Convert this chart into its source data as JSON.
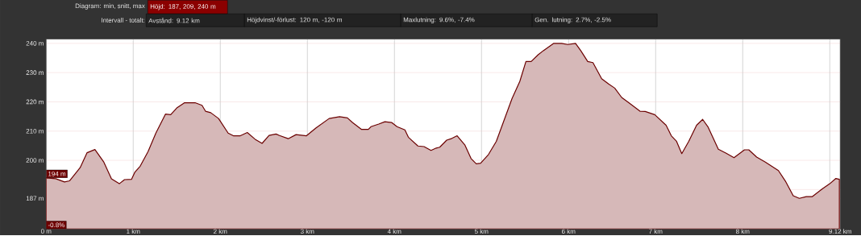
{
  "chart_data": {
    "type": "area",
    "title": "Diagram: min, snitt, max",
    "subtitle": "Intervall - totalt:",
    "annotations": [
      "Höjd: 187, 209, 240 m",
      "Avstånd: 9.12 km",
      "Höjdvinst/-förlust: 120 m, -120 m",
      "Maxlutning: 9.6%, -7.4%",
      "Gen. lutning: 2.7%, -2.5%",
      {
        "text": "194 m",
        "x": 0,
        "y": 194
      },
      "-0.8%"
    ],
    "x": [
      0,
      0.11,
      0.21,
      0.27,
      0.39,
      0.47,
      0.56,
      0.66,
      0.75,
      0.84,
      0.9,
      0.98,
      1.02,
      1.08,
      1.17,
      1.26,
      1.37,
      1.43,
      1.5,
      1.59,
      1.71,
      1.79,
      1.83,
      1.89,
      1.98,
      2.09,
      2.15,
      2.23,
      2.31,
      2.4,
      2.48,
      2.56,
      2.64,
      2.68,
      2.78,
      2.87,
      2.99,
      3.1,
      3.25,
      3.37,
      3.46,
      3.52,
      3.62,
      3.7,
      3.73,
      3.82,
      3.89,
      3.97,
      4.03,
      4.12,
      4.16,
      4.27,
      4.34,
      4.42,
      4.48,
      4.52,
      4.6,
      4.66,
      4.72,
      4.81,
      4.88,
      4.94,
      4.99,
      5.08,
      5.17,
      5.26,
      5.35,
      5.44,
      5.51,
      5.57,
      5.65,
      5.71,
      5.83,
      5.92,
      5.99,
      6.08,
      6.14,
      6.22,
      6.28,
      6.38,
      6.46,
      6.53,
      6.61,
      6.71,
      6.82,
      6.88,
      6.99,
      7.12,
      7.18,
      7.24,
      7.3,
      7.38,
      7.47,
      7.54,
      7.6,
      7.72,
      7.81,
      7.9,
      8.02,
      8.07,
      8.16,
      8.26,
      8.41,
      8.49,
      8.58,
      8.65,
      8.73,
      8.8,
      8.92,
      9.0,
      9.07,
      9.11
    ],
    "series": [
      {
        "color": "#6b0000",
        "values": [
          194,
          193.7,
          192.6,
          193,
          197.5,
          202.6,
          203.7,
          199.5,
          193.7,
          192,
          193.4,
          193.5,
          196,
          198,
          203,
          209.3,
          215.8,
          215.6,
          217.9,
          219.7,
          219.7,
          218.8,
          216.8,
          216.3,
          214.3,
          209.3,
          208.4,
          208.4,
          209.5,
          207.2,
          205.8,
          208.5,
          209,
          208.5,
          207.4,
          208.8,
          208.4,
          211.1,
          214.3,
          214.9,
          214.5,
          212.9,
          210.6,
          210.6,
          211.5,
          212.4,
          213.2,
          212.9,
          211.5,
          210.4,
          207.9,
          204.9,
          204.7,
          203.4,
          204.2,
          204.5,
          206.9,
          207.5,
          208.4,
          205.2,
          200.6,
          198.8,
          199,
          202,
          206.5,
          213.8,
          221.1,
          227,
          233.8,
          233.8,
          236.1,
          237.5,
          240,
          240,
          239.6,
          240,
          237.5,
          233.8,
          233.4,
          227.9,
          226.1,
          224.7,
          221.5,
          219.3,
          216.8,
          216.7,
          215.6,
          212,
          208.4,
          206.5,
          202.3,
          206.5,
          212,
          214,
          211.5,
          203.8,
          202.4,
          200.9,
          203.6,
          203.6,
          201.1,
          199.4,
          196.5,
          192.9,
          187.9,
          187,
          187.6,
          187.6,
          190.4,
          192,
          193.8,
          193.5
        ]
      }
    ],
    "xlim": [
      0,
      9.12
    ],
    "xticks": [
      {
        "value": 0,
        "label": "0 m"
      },
      {
        "value": 1,
        "label": "1 km"
      },
      {
        "value": 2,
        "label": "2 km"
      },
      {
        "value": 3,
        "label": "3 km"
      },
      {
        "value": 4,
        "label": "4 km"
      },
      {
        "value": 5,
        "label": "5 km"
      },
      {
        "value": 6,
        "label": "6 km"
      },
      {
        "value": 7,
        "label": "7 km"
      },
      {
        "value": 8,
        "label": "8 km"
      },
      {
        "value": 9,
        "label": null
      },
      {
        "value": 9.12,
        "label": "9.12 km"
      }
    ],
    "ylim": [
      176.5,
      241.5
    ],
    "yticks": [
      {
        "value": 187,
        "label": "187 m"
      },
      {
        "value": 190,
        "label": null
      },
      {
        "value": 200,
        "label": "200 m"
      },
      {
        "value": 210,
        "label": "210 m"
      },
      {
        "value": 220,
        "label": "220 m"
      },
      {
        "value": 230,
        "label": "230 m"
      },
      {
        "value": 240,
        "label": "240 m"
      }
    ],
    "grid": true
  }
}
